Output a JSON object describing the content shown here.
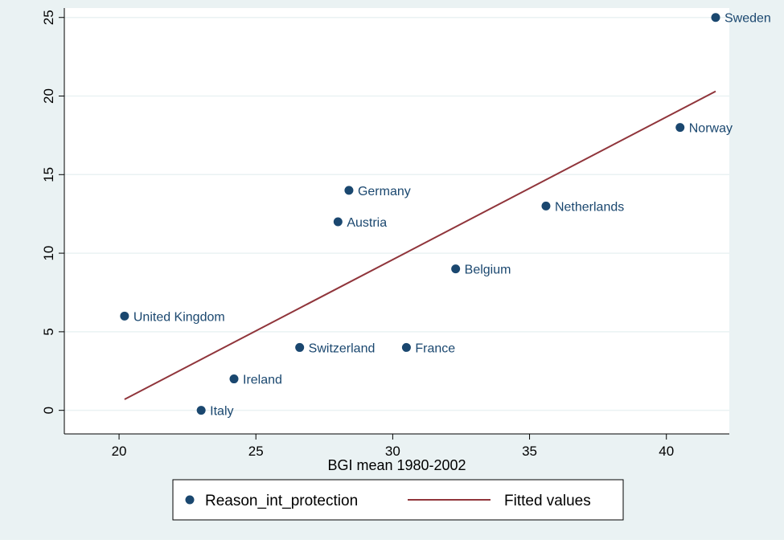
{
  "chart_data": {
    "type": "scatter",
    "xlabel": "BGI mean 1980-2002",
    "ylabel": "",
    "xlim": [
      18,
      42.3
    ],
    "ylim": [
      -1.5,
      25.6
    ],
    "xticks": [
      20,
      25,
      30,
      35,
      40
    ],
    "yticks": [
      0,
      5,
      10,
      15,
      20,
      25
    ],
    "grid": true,
    "legend_position": "bottom",
    "series": [
      {
        "name": "Reason_int_protection",
        "kind": "scatter",
        "color": "#1a476f",
        "points": [
          {
            "label": "Sweden",
            "x": 41.8,
            "y": 25
          },
          {
            "label": "Norway",
            "x": 40.5,
            "y": 18
          },
          {
            "label": "Netherlands",
            "x": 35.6,
            "y": 13
          },
          {
            "label": "Germany",
            "x": 28.4,
            "y": 14
          },
          {
            "label": "Austria",
            "x": 28.0,
            "y": 12
          },
          {
            "label": "Belgium",
            "x": 32.3,
            "y": 9
          },
          {
            "label": "United Kingdom",
            "x": 20.2,
            "y": 6
          },
          {
            "label": "Switzerland",
            "x": 26.6,
            "y": 4
          },
          {
            "label": "France",
            "x": 30.5,
            "y": 4
          },
          {
            "label": "Ireland",
            "x": 24.2,
            "y": 2
          },
          {
            "label": "Italy",
            "x": 23.0,
            "y": 0
          }
        ]
      },
      {
        "name": "Fitted values",
        "kind": "line",
        "color": "#90353b",
        "x": [
          20.2,
          41.8
        ],
        "y": [
          0.7,
          20.3
        ]
      }
    ]
  },
  "colors": {
    "outer_background": "#eaf2f3",
    "plot_background": "#ffffff",
    "grid": "#eaf2f3",
    "axis": "#000000",
    "label_text": "#1a476f"
  }
}
